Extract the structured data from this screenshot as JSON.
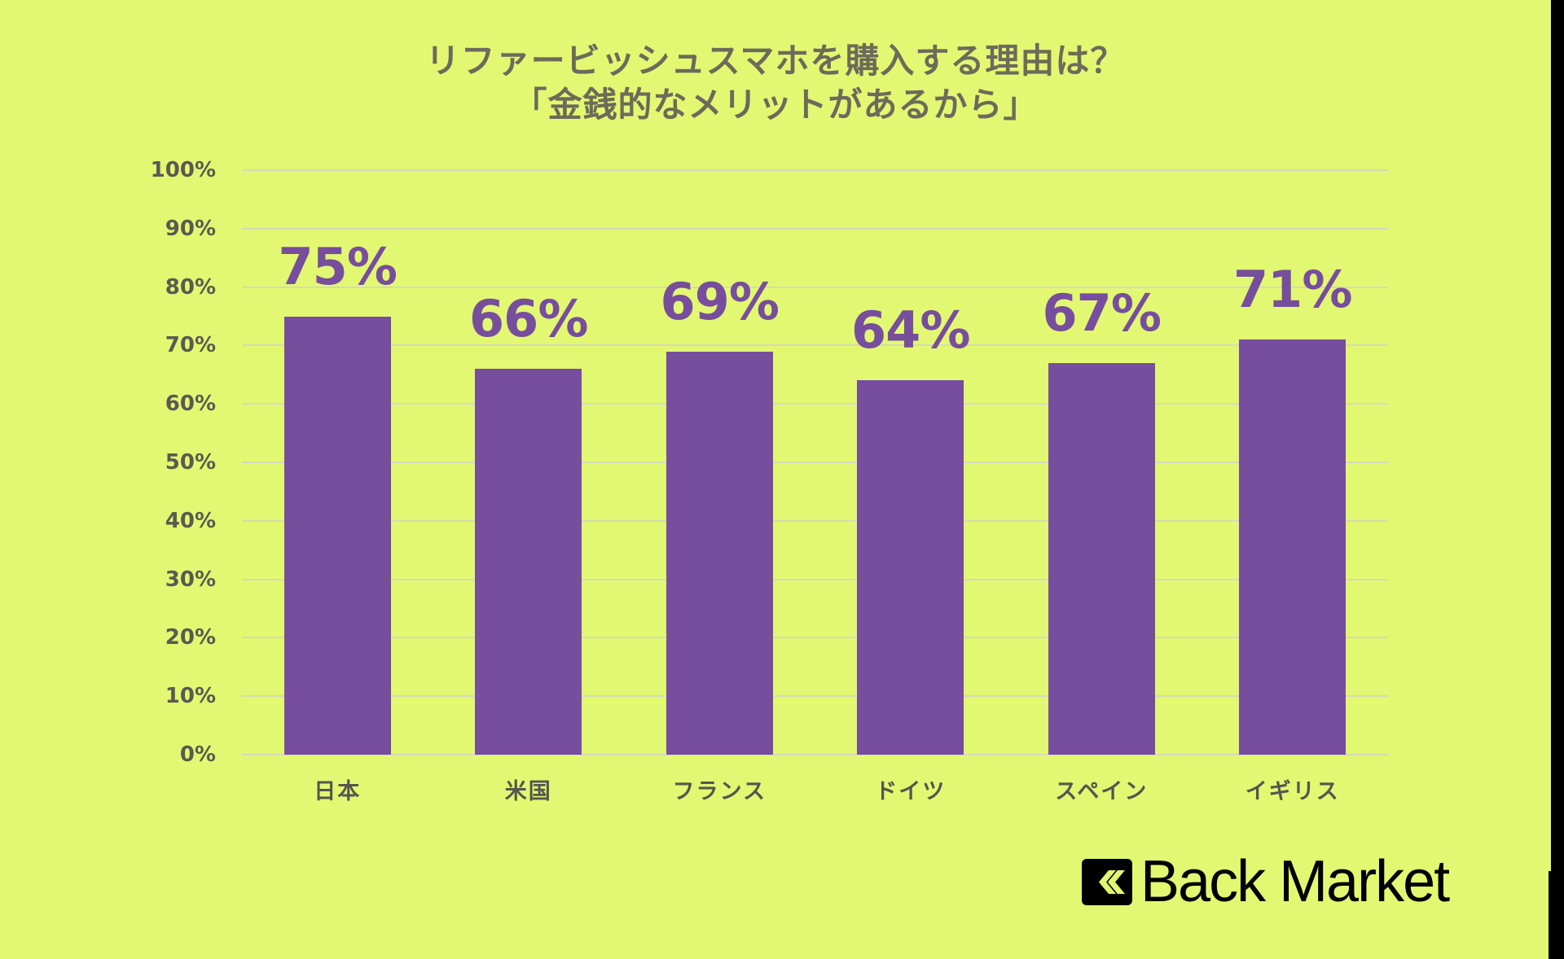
{
  "title": {
    "line1": "リファービッシュスマホを購入する理由は？",
    "line2": "「金銭的なメリットがあるから」"
  },
  "colors": {
    "background": "#E2F872",
    "bar": "#774D9D",
    "value_label": "#774D9D",
    "axis_text": "#5A5A52",
    "title_text": "#6B6B5A",
    "gridline": "#D6D9B8",
    "frame": "#000000"
  },
  "logo": {
    "icon": "double-chevron-left-icon",
    "text": "Back Market"
  },
  "chart_data": {
    "type": "bar",
    "title": "リファービッシュスマホを購入する理由は？「金銭的なメリットがあるから」",
    "xlabel": "",
    "ylabel": "",
    "categories": [
      "日本",
      "米国",
      "フランス",
      "ドイツ",
      "スペイン",
      "イギリス"
    ],
    "values": [
      75,
      66,
      69,
      64,
      67,
      71
    ],
    "value_labels": [
      "75%",
      "66%",
      "69%",
      "64%",
      "67%",
      "71%"
    ],
    "ylim": [
      0,
      100
    ],
    "yticks": [
      "0%",
      "10%",
      "20%",
      "30%",
      "40%",
      "50%",
      "60%",
      "70%",
      "80%",
      "90%",
      "100%"
    ],
    "grid": true,
    "legend": "none"
  }
}
